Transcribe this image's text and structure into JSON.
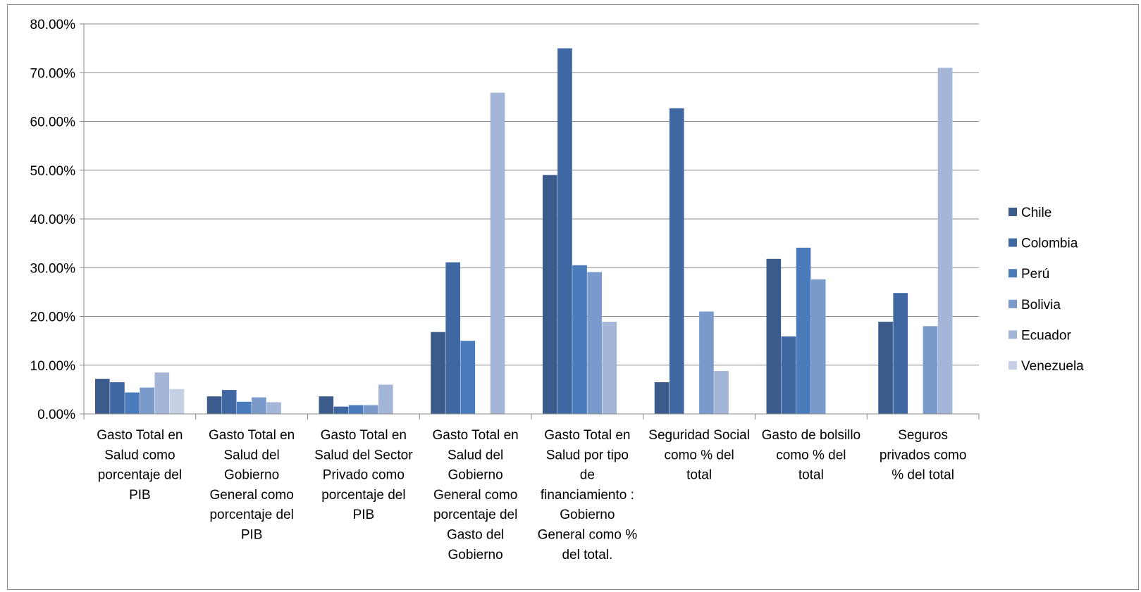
{
  "chart_data": {
    "type": "bar",
    "title": "",
    "xlabel": "",
    "ylabel": "",
    "ylim": [
      0,
      80
    ],
    "y_ticks": [
      "0.00%",
      "10.00%",
      "20.00%",
      "30.00%",
      "40.00%",
      "50.00%",
      "60.00%",
      "70.00%",
      "80.00%"
    ],
    "grid": true,
    "legend_position": "right",
    "categories": [
      [
        "Gasto Total en",
        "Salud como",
        "porcentaje del",
        "PIB"
      ],
      [
        "Gasto Total en",
        "Salud del",
        "Gobierno",
        "General como",
        "porcentaje del",
        "PIB"
      ],
      [
        "Gasto Total en",
        "Salud del Sector",
        "Privado como",
        "porcentaje del",
        "PIB"
      ],
      [
        "Gasto Total en",
        "Salud del",
        "Gobierno",
        "General como",
        "porcentaje del",
        "Gasto del",
        "Gobierno"
      ],
      [
        "Gasto Total en",
        "Salud por tipo",
        "de",
        "financiamiento :",
        "Gobierno",
        "General como %",
        "del total."
      ],
      [
        "Seguridad Social",
        "como % del",
        "total"
      ],
      [
        "Gasto de bolsillo",
        "como % del",
        "total"
      ],
      [
        "Seguros",
        "privados como",
        "% del total"
      ]
    ],
    "series": [
      {
        "name": "Chile",
        "color": "#3b5b8c",
        "values": [
          7.2,
          3.6,
          3.6,
          16.8,
          49.0,
          6.5,
          31.8,
          18.9
        ]
      },
      {
        "name": "Colombia",
        "color": "#3f67a2",
        "values": [
          6.5,
          4.9,
          1.5,
          31.1,
          75.0,
          62.7,
          15.9,
          24.8
        ]
      },
      {
        "name": "Perú",
        "color": "#4a7bbb",
        "values": [
          4.4,
          2.5,
          1.8,
          15.0,
          30.5,
          null,
          34.1,
          null
        ]
      },
      {
        "name": "Bolivia",
        "color": "#7a9acb",
        "values": [
          5.4,
          3.4,
          1.8,
          null,
          29.1,
          21.0,
          27.6,
          18.0
        ]
      },
      {
        "name": "Ecuador",
        "color": "#a4b6d8",
        "values": [
          8.5,
          2.4,
          6.0,
          65.9,
          18.9,
          8.8,
          null,
          71.0
        ]
      },
      {
        "name": "Venezuela",
        "color": "#c5d0e6",
        "values": [
          5.1,
          null,
          null,
          null,
          null,
          null,
          null,
          null
        ]
      }
    ]
  }
}
